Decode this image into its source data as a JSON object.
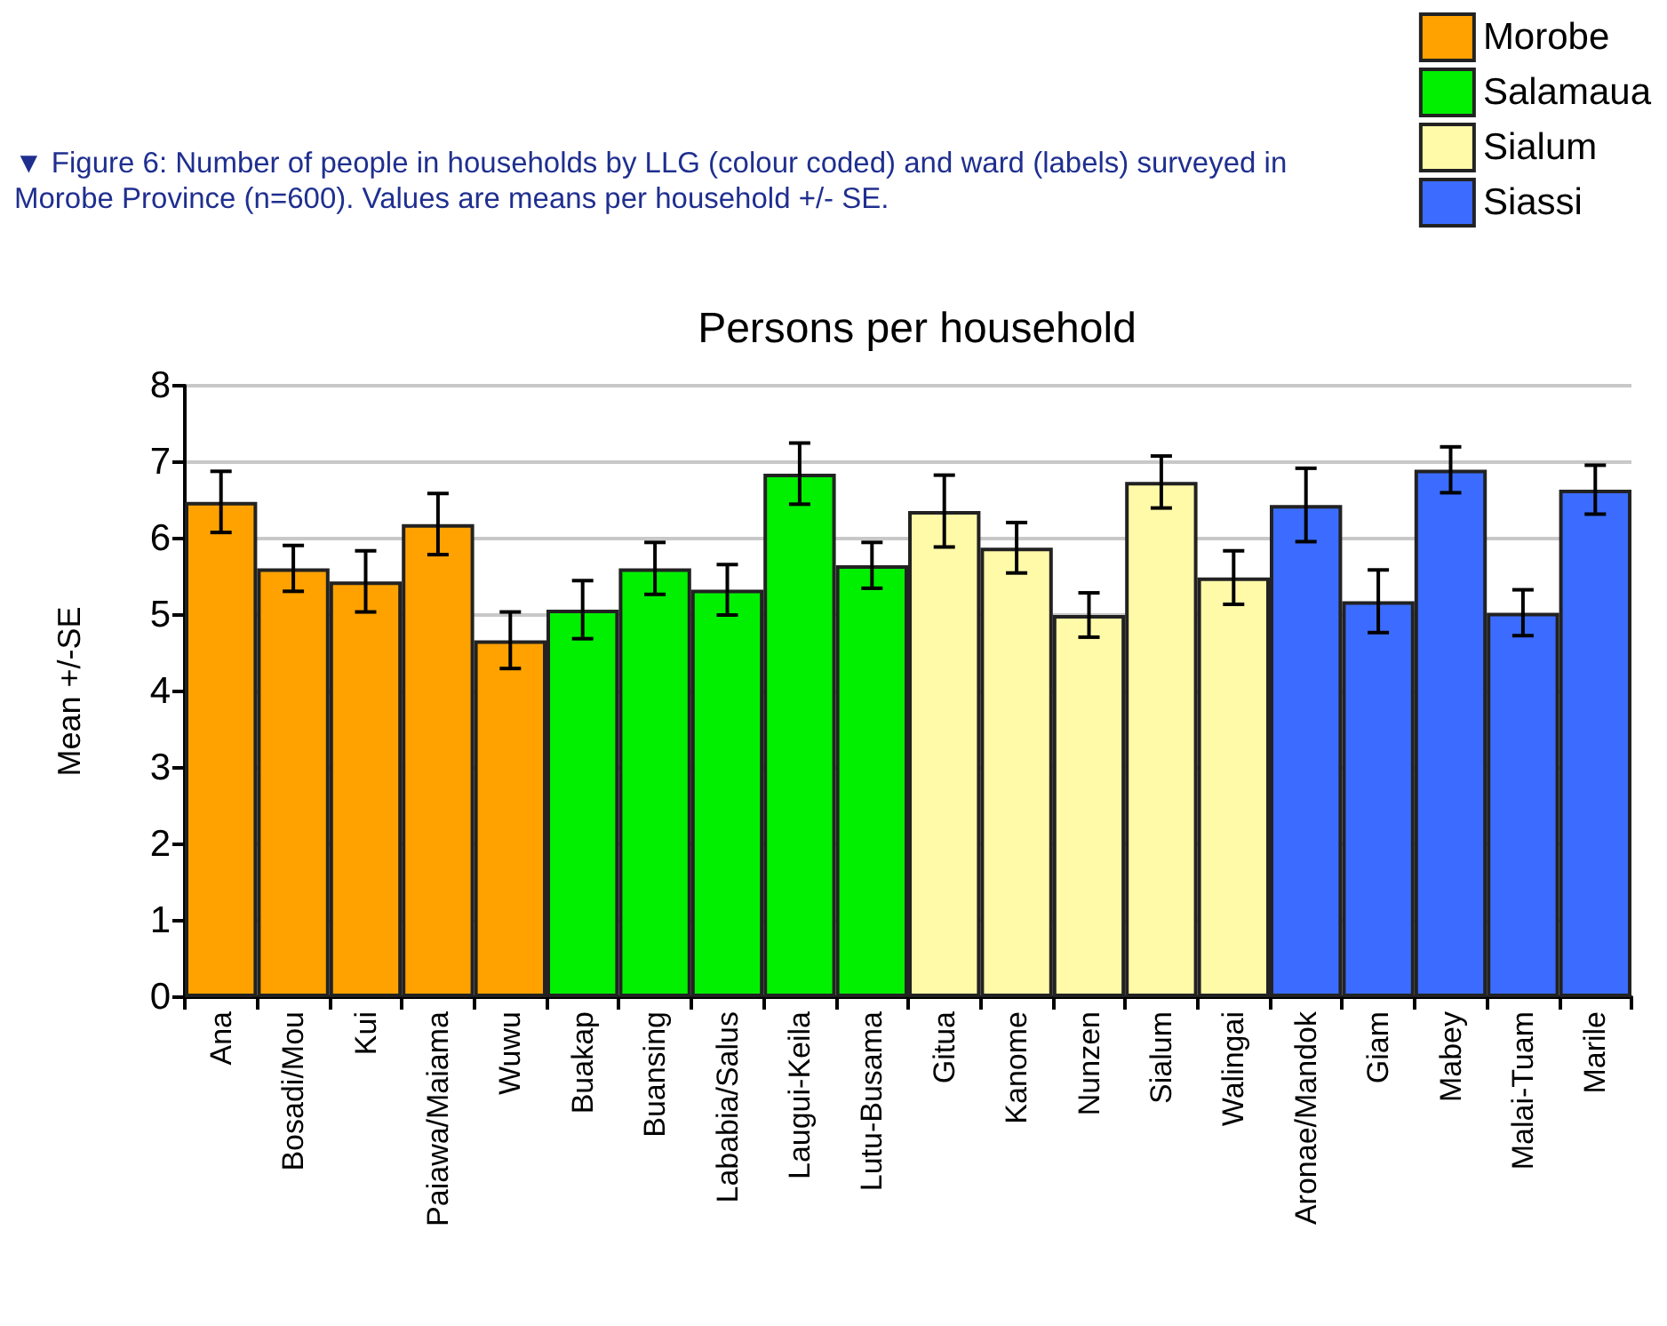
{
  "chart_data": {
    "type": "bar",
    "title": "Persons per household",
    "ylabel": "Mean +/-SE",
    "annotations": [
      "▼ Figure 6:  Number of people in households by LLG (colour coded) and ward (labels) surveyed in Morobe Province (n=600). Values are means per household +/- SE."
    ],
    "categories": [
      "Ana",
      "Bosadi/Mou",
      "Kui",
      "Paiawa/Maiama",
      "Wuwu",
      "Buakap",
      "Buansing",
      "Lababia/Salus",
      "Laugui-Keila",
      "Lutu-Busama",
      "Gitua",
      "Kanome",
      "Nunzen",
      "Sialum",
      "Walingai",
      "Aronae/Mandok",
      "Giam",
      "Mabey",
      "Malai-Tuam",
      "Marile"
    ],
    "series": [
      {
        "name": "Morobe",
        "color": "#ffa200",
        "values": [
          6.48,
          5.61,
          5.44,
          6.19,
          4.67,
          null,
          null,
          null,
          null,
          null,
          null,
          null,
          null,
          null,
          null,
          null,
          null,
          null,
          null,
          null
        ],
        "errors": [
          0.4,
          0.3,
          0.4,
          0.4,
          0.37,
          null,
          null,
          null,
          null,
          null,
          null,
          null,
          null,
          null,
          null,
          null,
          null,
          null,
          null,
          null
        ]
      },
      {
        "name": "Salamaua",
        "color": "#00f000",
        "values": [
          null,
          null,
          null,
          null,
          null,
          5.07,
          5.61,
          5.33,
          6.85,
          5.65,
          null,
          null,
          null,
          null,
          null,
          null,
          null,
          null,
          null,
          null
        ],
        "errors": [
          null,
          null,
          null,
          null,
          null,
          0.38,
          0.34,
          0.33,
          0.4,
          0.3,
          null,
          null,
          null,
          null,
          null,
          null,
          null,
          null,
          null,
          null
        ]
      },
      {
        "name": "Sialum",
        "color": "#fffaa8",
        "values": [
          null,
          null,
          null,
          null,
          null,
          null,
          null,
          null,
          null,
          null,
          6.36,
          5.88,
          5.0,
          6.74,
          5.49,
          null,
          null,
          null,
          null,
          null
        ],
        "errors": [
          null,
          null,
          null,
          null,
          null,
          null,
          null,
          null,
          null,
          null,
          0.47,
          0.33,
          0.29,
          0.34,
          0.35,
          null,
          null,
          null,
          null,
          null
        ]
      },
      {
        "name": "Siassi",
        "color": "#3b6cff",
        "values": [
          null,
          null,
          null,
          null,
          null,
          null,
          null,
          null,
          null,
          null,
          null,
          null,
          null,
          null,
          null,
          6.44,
          5.18,
          6.9,
          5.03,
          6.64
        ],
        "errors": [
          null,
          null,
          null,
          null,
          null,
          null,
          null,
          null,
          null,
          null,
          null,
          null,
          null,
          null,
          null,
          0.48,
          0.41,
          0.3,
          0.3,
          0.32
        ]
      }
    ],
    "ylim": [
      0,
      8
    ],
    "yticks": [
      0,
      1,
      2,
      3,
      4,
      5,
      6,
      7,
      8
    ],
    "grid": "y",
    "legend": "top right"
  }
}
